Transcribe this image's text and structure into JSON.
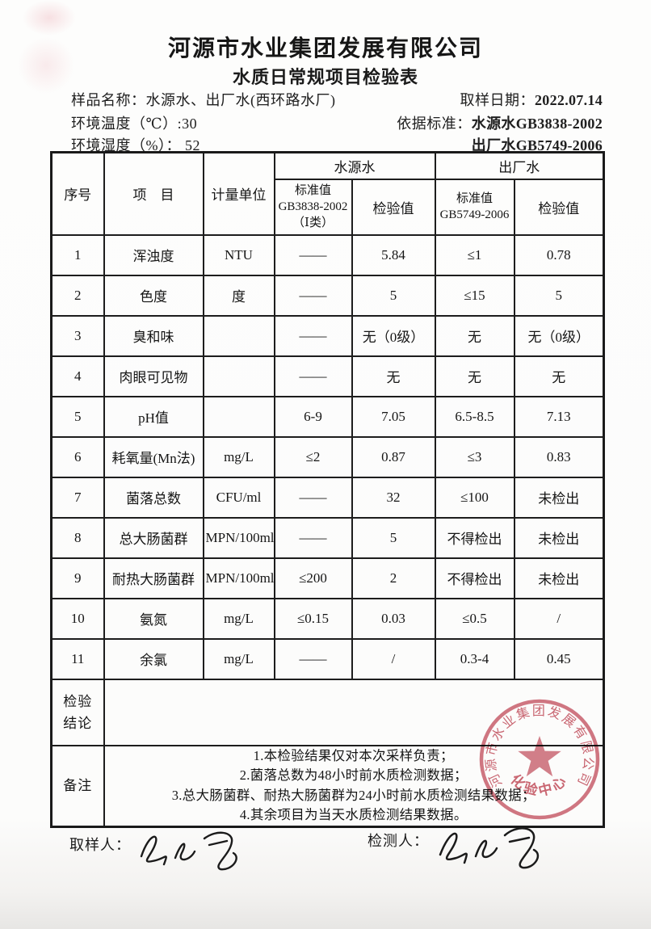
{
  "header": {
    "company": "河源市水业集团发展有限公司",
    "title": "水质日常规项目检验表",
    "sample_label": "样品名称：",
    "sample_value": "水源水、出厂水(西环路水厂)",
    "date_label": "取样日期：",
    "date_value": "2022.07.14",
    "temp_text": "环境温度（℃）:30",
    "std_label": "依据标准：",
    "std_source": "水源水GB3838-2002",
    "humidity_text": "环境湿度（%）： 52",
    "std_factory": "出厂水GB5749-2006"
  },
  "table": {
    "headers": {
      "no": "序号",
      "item": "项　目",
      "unit": "计量单位",
      "source_group": "水源水",
      "factory_group": "出厂水",
      "source_std": "标准值\nGB3838-2002\n（Ⅰ类）",
      "source_val": "检验值",
      "factory_std": "标准值\nGB5749-2006",
      "factory_val": "检验值"
    },
    "rows": [
      {
        "no": "1",
        "item": "浑浊度",
        "unit": "NTU",
        "src_std": "——",
        "src_val": "5.84",
        "fac_std": "≤1",
        "fac_val": "0.78"
      },
      {
        "no": "2",
        "item": "色度",
        "unit": "度",
        "src_std": "——",
        "src_val": "5",
        "fac_std": "≤15",
        "fac_val": "5"
      },
      {
        "no": "3",
        "item": "臭和味",
        "unit": "",
        "src_std": "——",
        "src_val": "无（0级）",
        "fac_std": "无",
        "fac_val": "无（0级）"
      },
      {
        "no": "4",
        "item": "肉眼可见物",
        "unit": "",
        "src_std": "——",
        "src_val": "无",
        "fac_std": "无",
        "fac_val": "无"
      },
      {
        "no": "5",
        "item": "pH值",
        "unit": "",
        "src_std": "6-9",
        "src_val": "7.05",
        "fac_std": "6.5-8.5",
        "fac_val": "7.13"
      },
      {
        "no": "6",
        "item": "耗氧量(Mn法)",
        "unit": "mg/L",
        "src_std": "≤2",
        "src_val": "0.87",
        "fac_std": "≤3",
        "fac_val": "0.83"
      },
      {
        "no": "7",
        "item": "菌落总数",
        "unit": "CFU/ml",
        "src_std": "——",
        "src_val": "32",
        "fac_std": "≤100",
        "fac_val": "未检出"
      },
      {
        "no": "8",
        "item": "总大肠菌群",
        "unit": "MPN/100ml",
        "src_std": "——",
        "src_val": "5",
        "fac_std": "不得检出",
        "fac_val": "未检出"
      },
      {
        "no": "9",
        "item": "耐热大肠菌群",
        "unit": "MPN/100ml",
        "src_std": "≤200",
        "src_val": "2",
        "fac_std": "不得检出",
        "fac_val": "未检出"
      },
      {
        "no": "10",
        "item": "氨氮",
        "unit": "mg/L",
        "src_std": "≤0.15",
        "src_val": "0.03",
        "fac_std": "≤0.5",
        "fac_val": "/"
      },
      {
        "no": "11",
        "item": "余氯",
        "unit": "mg/L",
        "src_std": "——",
        "src_val": "/",
        "fac_std": "0.3-4",
        "fac_val": "0.45"
      }
    ],
    "conclusion_label": "检验\n结论",
    "conclusion_value": "",
    "notes_label": "备注",
    "notes": [
      "1.本检验结果仅对本次采样负责；",
      "2.菌落总数为48小时前水质检测数据；",
      "3.总大肠菌群、耐热大肠菌群为24小时前水质检测结果数据；",
      "4.其余项目为当天水质检测结果数据。"
    ]
  },
  "footer": {
    "sampler_label": "取样人：",
    "tester_label": "检测人："
  },
  "stamp": {
    "ring_text": "河源市水业集团发展有限公司",
    "center_text": "化验中心",
    "color": "#c34d5c"
  }
}
